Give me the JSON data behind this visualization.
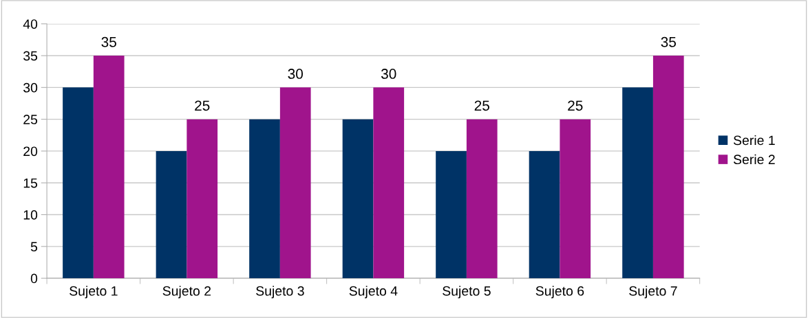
{
  "chart_data": {
    "type": "bar",
    "categories": [
      "Sujeto 1",
      "Sujeto 2",
      "Sujeto 3",
      "Sujeto 4",
      "Sujeto 5",
      "Sujeto 6",
      "Sujeto 7"
    ],
    "series": [
      {
        "name": "Serie 1",
        "color": "#003366",
        "values": [
          30,
          20,
          25,
          25,
          20,
          20,
          30
        ]
      },
      {
        "name": "Serie 2",
        "color": "#a0148c",
        "values": [
          35,
          25,
          30,
          30,
          25,
          25,
          35
        ],
        "value_labels": [
          "35",
          "25",
          "30",
          "30",
          "25",
          "25",
          "35"
        ]
      }
    ],
    "ylim": [
      0,
      40
    ],
    "yticks": [
      0,
      5,
      10,
      15,
      20,
      25,
      30,
      35,
      40
    ],
    "grid": "y",
    "legend": "right"
  }
}
